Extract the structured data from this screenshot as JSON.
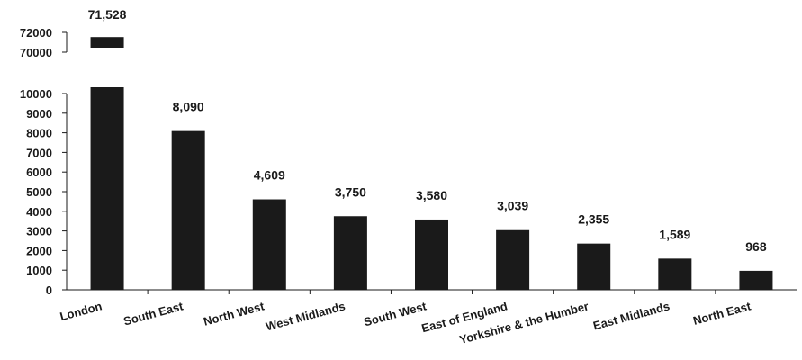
{
  "chart_data": {
    "type": "bar",
    "categories": [
      "London",
      "South East",
      "North West",
      "West Midlands",
      "South West",
      "East of England",
      "Yorkshire & the Humber",
      "East Midlands",
      "North East"
    ],
    "values": [
      71528,
      8090,
      4609,
      3750,
      3580,
      3039,
      2355,
      1589,
      968
    ],
    "data_labels": [
      "71,528",
      "8,090",
      "4,609",
      "3,750",
      "3,580",
      "3,039",
      "2,355",
      "1,589",
      "968"
    ],
    "y_ticks_lower": [
      "0",
      "1000",
      "2000",
      "3000",
      "4000",
      "5000",
      "6000",
      "7000",
      "8000",
      "9000",
      "10000"
    ],
    "y_ticks_upper": [
      "70000",
      "72000"
    ],
    "ylim_lower": [
      0,
      10000
    ],
    "ylim_upper": [
      70000,
      72000
    ],
    "axis_break": true,
    "grid": false,
    "title": "",
    "xlabel": "",
    "ylabel": "",
    "bar_color": "#1a1a1a"
  }
}
